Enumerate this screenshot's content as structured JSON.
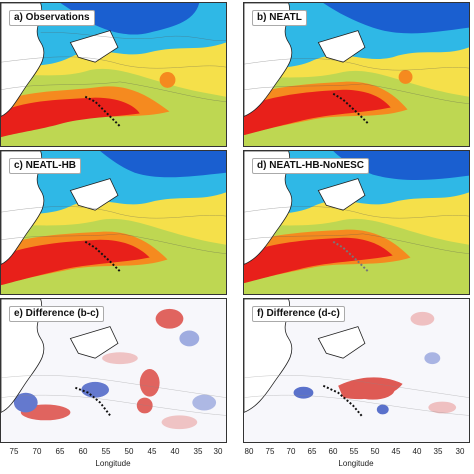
{
  "panels": [
    {
      "label": "a) Observations",
      "type": "sst"
    },
    {
      "label": "b) NEATL",
      "type": "sst"
    },
    {
      "label": "c) NEATL-HB",
      "type": "sst"
    },
    {
      "label": "d) NEATL-HB-NoNESC",
      "type": "sst"
    },
    {
      "label": "e) Difference (b-c)",
      "type": "diff"
    },
    {
      "label": "f) Difference (d-c)",
      "type": "diff"
    }
  ],
  "axes": {
    "xlabel": "Longitude",
    "left_ticks": [
      "75",
      "70",
      "65",
      "60",
      "55",
      "50",
      "45",
      "40",
      "35",
      "30"
    ],
    "right_ticks": [
      "80",
      "75",
      "70",
      "65",
      "60",
      "55",
      "50",
      "45",
      "40",
      "35",
      "30"
    ]
  },
  "colors": {
    "warm": "#e8201a",
    "orange": "#f58a1f",
    "yellow": "#f5e04a",
    "green": "#8fd05a",
    "cyan": "#2fb8e6",
    "blue": "#1a5fd0",
    "deep_blue": "#0a2a9a",
    "diff_red": "#d9332b",
    "diff_blue": "#3450c0"
  }
}
